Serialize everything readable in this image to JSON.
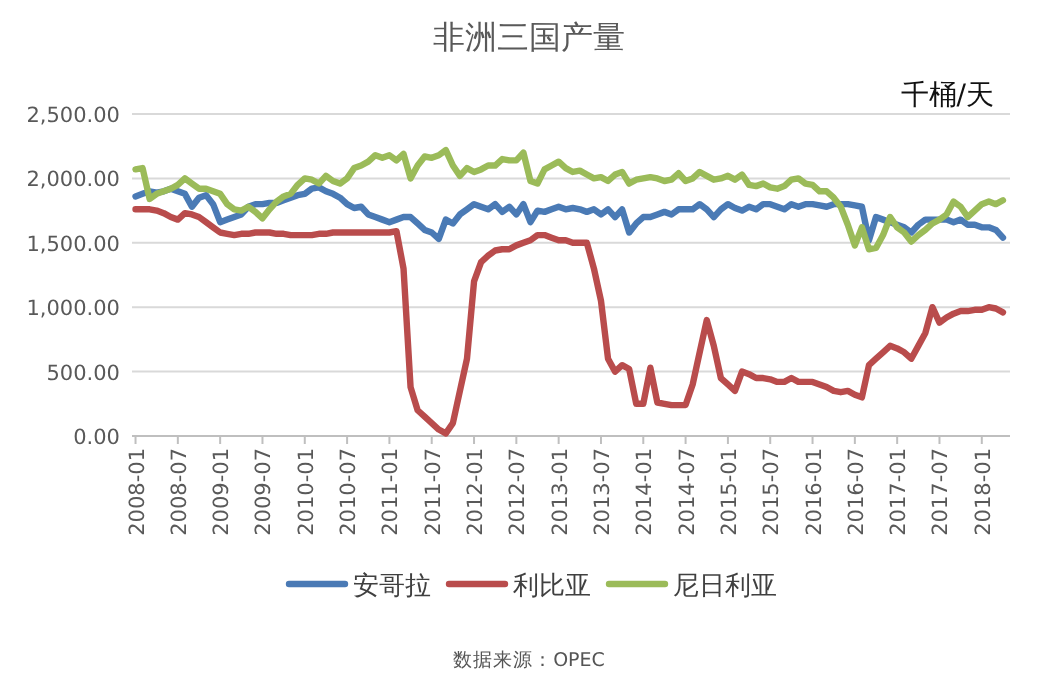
{
  "chart_data": {
    "type": "line",
    "title": "非洲三国产量",
    "annotations": [
      "千桶/天",
      "数据来源：OPEC"
    ],
    "categories": [
      "2008-01",
      null,
      null,
      null,
      null,
      null,
      "2008-07",
      null,
      null,
      null,
      null,
      null,
      "2009-01",
      null,
      null,
      null,
      null,
      null,
      "2009-07",
      null,
      null,
      null,
      null,
      null,
      "2010-01",
      null,
      null,
      null,
      null,
      null,
      "2010-07",
      null,
      null,
      null,
      null,
      null,
      "2011-01",
      null,
      null,
      null,
      null,
      null,
      "2011-07",
      null,
      null,
      null,
      null,
      null,
      "2012-01",
      null,
      null,
      null,
      null,
      null,
      "2012-07",
      null,
      null,
      null,
      null,
      null,
      "2013-01",
      null,
      null,
      null,
      null,
      null,
      "2013-07",
      null,
      null,
      null,
      null,
      null,
      "2014-01",
      null,
      null,
      null,
      null,
      null,
      "2014-07",
      null,
      null,
      null,
      null,
      null,
      "2015-01",
      null,
      null,
      null,
      null,
      null,
      "2015-07",
      null,
      null,
      null,
      null,
      null,
      "2016-01",
      null,
      null,
      null,
      null,
      null,
      "2016-07",
      null,
      null,
      null,
      null,
      null,
      "2017-01",
      null,
      null,
      null,
      null,
      null,
      "2017-07",
      null,
      null,
      null,
      null,
      null,
      "2018-01",
      null,
      null,
      null
    ],
    "series": [
      {
        "name": "安哥拉",
        "color": "#4a7ab5",
        "values": [
          1860,
          1880,
          1900,
          1890,
          1900,
          1920,
          1900,
          1880,
          1780,
          1850,
          1870,
          1800,
          1660,
          1680,
          1700,
          1720,
          1780,
          1800,
          1800,
          1810,
          1810,
          1830,
          1850,
          1870,
          1880,
          1920,
          1930,
          1900,
          1880,
          1850,
          1800,
          1770,
          1780,
          1720,
          1700,
          1680,
          1660,
          1680,
          1700,
          1700,
          1650,
          1600,
          1580,
          1530,
          1680,
          1650,
          1720,
          1760,
          1800,
          1780,
          1760,
          1800,
          1740,
          1780,
          1720,
          1800,
          1660,
          1750,
          1740,
          1760,
          1780,
          1760,
          1770,
          1760,
          1740,
          1760,
          1720,
          1760,
          1700,
          1760,
          1580,
          1650,
          1700,
          1700,
          1720,
          1740,
          1720,
          1760,
          1760,
          1760,
          1800,
          1760,
          1700,
          1760,
          1800,
          1770,
          1750,
          1780,
          1760,
          1800,
          1800,
          1780,
          1760,
          1800,
          1780,
          1800,
          1800,
          1790,
          1780,
          1800,
          1800,
          1800,
          1790,
          1780,
          1520,
          1700,
          1680,
          1660,
          1640,
          1620,
          1580,
          1640,
          1680,
          1680,
          1680,
          1680,
          1660,
          1680,
          1640,
          1640,
          1620,
          1620,
          1600,
          1540
        ]
      },
      {
        "name": "利比亚",
        "color": "#b94c4c",
        "values": [
          1760,
          1760,
          1760,
          1750,
          1730,
          1700,
          1680,
          1730,
          1720,
          1700,
          1660,
          1620,
          1580,
          1570,
          1560,
          1570,
          1570,
          1580,
          1580,
          1580,
          1570,
          1570,
          1560,
          1560,
          1560,
          1560,
          1570,
          1570,
          1580,
          1580,
          1580,
          1580,
          1580,
          1580,
          1580,
          1580,
          1580,
          1590,
          1300,
          380,
          200,
          150,
          100,
          50,
          20,
          100,
          350,
          600,
          1200,
          1350,
          1400,
          1440,
          1450,
          1450,
          1480,
          1500,
          1520,
          1560,
          1560,
          1540,
          1520,
          1520,
          1500,
          1500,
          1500,
          1300,
          1050,
          600,
          500,
          550,
          520,
          250,
          250,
          530,
          260,
          250,
          240,
          240,
          240,
          400,
          650,
          900,
          700,
          450,
          400,
          350,
          500,
          480,
          450,
          450,
          440,
          420,
          420,
          450,
          420,
          420,
          420,
          400,
          380,
          350,
          340,
          350,
          320,
          300,
          550,
          600,
          650,
          700,
          680,
          650,
          600,
          700,
          800,
          1000,
          880,
          920,
          950,
          970,
          970,
          980,
          980,
          1000,
          990,
          960
        ]
      },
      {
        "name": "尼日利亚",
        "color": "#9bbb59",
        "values": [
          2070,
          2080,
          1840,
          1880,
          1900,
          1920,
          1950,
          2000,
          1960,
          1920,
          1920,
          1900,
          1880,
          1800,
          1760,
          1750,
          1780,
          1740,
          1690,
          1760,
          1820,
          1860,
          1880,
          1950,
          2000,
          1990,
          1960,
          2020,
          1980,
          1960,
          2000,
          2080,
          2100,
          2130,
          2180,
          2160,
          2180,
          2140,
          2190,
          2000,
          2100,
          2170,
          2160,
          2180,
          2220,
          2100,
          2020,
          2080,
          2050,
          2070,
          2100,
          2100,
          2150,
          2140,
          2140,
          2200,
          1980,
          1960,
          2070,
          2100,
          2130,
          2080,
          2050,
          2060,
          2030,
          2000,
          2010,
          1980,
          2030,
          2050,
          1960,
          1990,
          2000,
          2010,
          2000,
          1980,
          1990,
          2040,
          1980,
          2000,
          2050,
          2020,
          1990,
          2000,
          2020,
          1990,
          2030,
          1950,
          1940,
          1960,
          1930,
          1920,
          1940,
          1990,
          2000,
          1960,
          1950,
          1900,
          1900,
          1850,
          1780,
          1640,
          1480,
          1620,
          1450,
          1460,
          1560,
          1700,
          1620,
          1580,
          1510,
          1560,
          1600,
          1650,
          1680,
          1720,
          1820,
          1780,
          1700,
          1750,
          1800,
          1820,
          1800,
          1830
        ]
      }
    ],
    "ylim": [
      0,
      2500
    ],
    "yticks": [
      {
        "value": 0,
        "label": "0.00"
      },
      {
        "value": 500,
        "label": "500.00"
      },
      {
        "value": 1000,
        "label": "1,000.00"
      },
      {
        "value": 1500,
        "label": "1,500.00"
      },
      {
        "value": 2000,
        "label": "2,000.00"
      },
      {
        "value": 2500,
        "label": "2,500.00"
      }
    ],
    "grid": "y",
    "legend": "bottom",
    "line_style": "solid"
  }
}
